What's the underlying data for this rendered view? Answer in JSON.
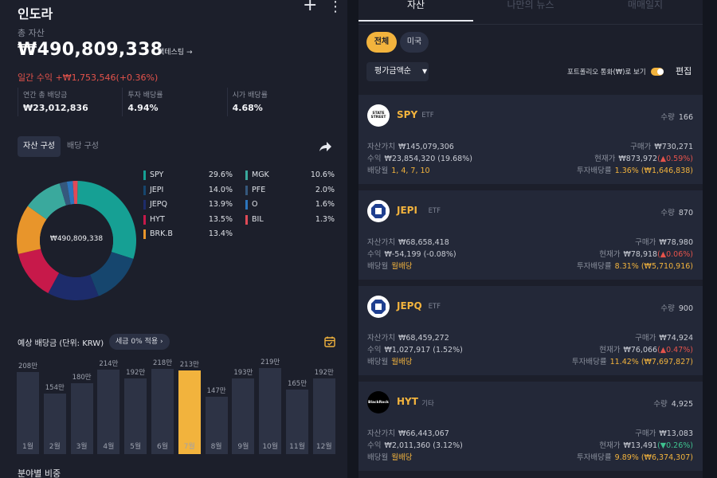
{
  "header": {
    "title": "인도라",
    "add_icon": "plus-icon",
    "more_icon": "more-vertical-icon"
  },
  "summary": {
    "total_label": "총 자산",
    "total_value": "₩490,809,338",
    "backtest_label": "백테스팅 →",
    "daily_return": "일간 수익 +₩1,753,546(+0.36%)"
  },
  "stats": [
    {
      "label": "연간 총 배당금",
      "value": "₩23,012,836"
    },
    {
      "label": "투자 배당률",
      "value": "4.94%"
    },
    {
      "label": "시가 배당률",
      "value": "4.68%"
    }
  ],
  "segment_tabs": {
    "active": "자산 구성",
    "inactive": "배당 구성"
  },
  "allocation": {
    "center_label": "₩490,809,338",
    "items": [
      {
        "name": "SPY",
        "pct": "29.6%",
        "value": 29.6,
        "color": "#16a094"
      },
      {
        "name": "JEPI",
        "pct": "14.0%",
        "value": 14.0,
        "color": "#16466e"
      },
      {
        "name": "JEPQ",
        "pct": "13.9%",
        "value": 13.9,
        "color": "#1d2c6b"
      },
      {
        "name": "HYT",
        "pct": "13.5%",
        "value": 13.5,
        "color": "#c7194a"
      },
      {
        "name": "BRK.B",
        "pct": "13.4%",
        "value": 13.4,
        "color": "#e8952b"
      },
      {
        "name": "MGK",
        "pct": "10.6%",
        "value": 10.6,
        "color": "#3aa99d"
      },
      {
        "name": "PFE",
        "pct": "2.0%",
        "value": 2.0,
        "color": "#35587d"
      },
      {
        "name": "O",
        "pct": "1.6%",
        "value": 1.6,
        "color": "#2c75bd"
      },
      {
        "name": "BIL",
        "pct": "1.3%",
        "value": 1.3,
        "color": "#e04a57"
      }
    ]
  },
  "dividends": {
    "title": "예상 배당금 (단위: KRW)",
    "tax_chip": "세금 0% 적용 ›",
    "calendar_icon": "calendar-icon",
    "months": [
      {
        "month": "1월",
        "label": "208만",
        "value": 208
      },
      {
        "month": "2월",
        "label": "154만",
        "value": 154
      },
      {
        "month": "3월",
        "label": "180만",
        "value": 180
      },
      {
        "month": "4월",
        "label": "214만",
        "value": 214
      },
      {
        "month": "5월",
        "label": "192만",
        "value": 192
      },
      {
        "month": "6월",
        "label": "218만",
        "value": 218
      },
      {
        "month": "7월",
        "label": "213만",
        "value": 213,
        "highlight": true
      },
      {
        "month": "8월",
        "label": "147만",
        "value": 147
      },
      {
        "month": "9월",
        "label": "193만",
        "value": 193
      },
      {
        "month": "10월",
        "label": "219만",
        "value": 219
      },
      {
        "month": "11월",
        "label": "165만",
        "value": 165
      },
      {
        "month": "12월",
        "label": "192만",
        "value": 192
      }
    ]
  },
  "sector_title": "분야별 비중",
  "right": {
    "tabs": [
      "자산",
      "나만의 뉴스",
      "매매일지"
    ],
    "filters": [
      "전체",
      "미국"
    ],
    "sort_label": "평가금액순",
    "currency_toggle_label": "포트폴리오 통화(₩)로 보기",
    "edit_label": "편집"
  },
  "holdings": [
    {
      "ticker": "SPY",
      "type": "ETF",
      "logo": "state-street-logo",
      "logo_text": "STATE STREET",
      "qty_label": "수량",
      "qty": "166",
      "value_label": "자산가치",
      "value": "₩145,079,306",
      "buy_label": "구매가",
      "buy": "₩730,271",
      "return_label": "수익",
      "return": "₩23,854,320 (19.68%)",
      "price_label": "현재가",
      "price": "₩873,972",
      "change": "(▲0.59%)",
      "change_dir": "up",
      "month_label": "배당월",
      "months": "1, 4, 7, 10",
      "yield_label": "투자배당률",
      "yield": "1.36% (₩1,646,838)"
    },
    {
      "ticker": "JEPI",
      "type": "ETF",
      "logo": "jpmorgan-logo",
      "logo_text": "",
      "qty_label": "수량",
      "qty": "870",
      "value_label": "자산가치",
      "value": "₩68,658,418",
      "buy_label": "구매가",
      "buy": "₩78,980",
      "return_label": "수익",
      "return": "₩-54,199 (-0.08%)",
      "price_label": "현재가",
      "price": "₩78,918",
      "change": "(▲0.06%)",
      "change_dir": "up",
      "month_label": "배당월",
      "months": "월배당",
      "yield_label": "투자배당률",
      "yield": "8.31% (₩5,710,916)"
    },
    {
      "ticker": "JEPQ",
      "type": "ETF",
      "logo": "jpmorgan-logo",
      "logo_text": "",
      "qty_label": "수량",
      "qty": "900",
      "value_label": "자산가치",
      "value": "₩68,459,272",
      "buy_label": "구매가",
      "buy": "₩74,924",
      "return_label": "수익",
      "return": "₩1,027,917 (1.52%)",
      "price_label": "현재가",
      "price": "₩76,066",
      "change": "(▲0.47%)",
      "change_dir": "up",
      "month_label": "배당월",
      "months": "월배당",
      "yield_label": "투자배당률",
      "yield": "11.42% (₩7,697,827)"
    },
    {
      "ticker": "HYT",
      "type": "기타",
      "logo": "blackrock-logo",
      "logo_text": "BlackRock",
      "qty_label": "수량",
      "qty": "4,925",
      "value_label": "자산가치",
      "value": "₩66,443,067",
      "buy_label": "구매가",
      "buy": "₩13,083",
      "return_label": "수익",
      "return": "₩2,011,360 (3.12%)",
      "price_label": "현재가",
      "price": "₩13,491",
      "change": "(▼0.26%)",
      "change_dir": "down",
      "month_label": "배당월",
      "months": "월배당",
      "yield_label": "투자배당률",
      "yield": "9.89% (₩6,374,307)"
    }
  ]
}
